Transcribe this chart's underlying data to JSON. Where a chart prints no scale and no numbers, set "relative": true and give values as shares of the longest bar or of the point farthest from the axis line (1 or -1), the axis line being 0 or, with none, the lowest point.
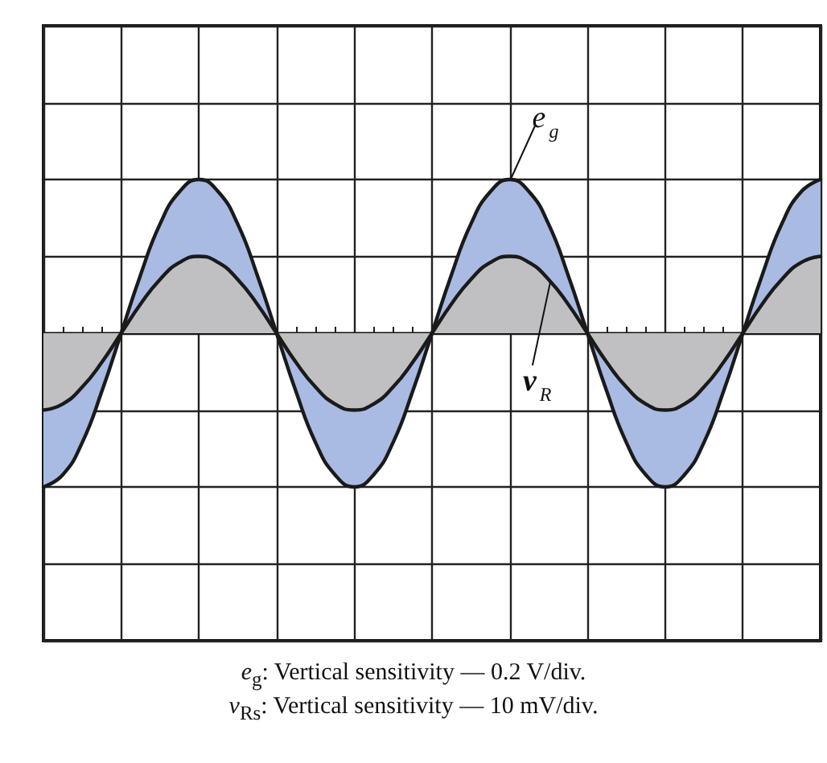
{
  "chart_data": {
    "type": "area",
    "relative": true,
    "grid": true,
    "legend": false,
    "marker": "none",
    "line_style": "solid",
    "categories": [
      null,
      null,
      null,
      null,
      null,
      null,
      null,
      null,
      null,
      null,
      null,
      null,
      null,
      null,
      null,
      null,
      null,
      null,
      null,
      null,
      null,
      null,
      null,
      null,
      null,
      null,
      null,
      null,
      null,
      null,
      null,
      null,
      null,
      null,
      null,
      null,
      null,
      null,
      null,
      null,
      null
    ],
    "series": [
      {
        "name": "e$_{g}$",
        "color": "#a9bbe3",
        "values": [
          -1,
          -0.92,
          -0.71,
          -0.38,
          0,
          0.38,
          0.71,
          0.92,
          1,
          0.92,
          0.71,
          0.38,
          0,
          -0.38,
          -0.71,
          -0.92,
          -1,
          -0.92,
          -0.71,
          -0.38,
          0,
          0.38,
          0.71,
          0.92,
          1,
          0.92,
          0.71,
          0.38,
          0,
          -0.38,
          -0.71,
          -0.92,
          -1,
          -0.92,
          -0.71,
          -0.38,
          0,
          0.38,
          0.71,
          0.92,
          1
        ]
      },
      {
        "name": "v$_{R}$",
        "color": "#c0c0c2",
        "values": [
          -0.5,
          -0.46,
          -0.35,
          -0.19,
          0,
          0.19,
          0.35,
          0.46,
          0.5,
          0.46,
          0.35,
          0.19,
          0,
          -0.19,
          -0.35,
          -0.46,
          -0.5,
          -0.46,
          -0.35,
          -0.19,
          0,
          0.19,
          0.35,
          0.46,
          0.5,
          0.46,
          0.35,
          0.19,
          0,
          -0.19,
          -0.35,
          -0.46,
          -0.5,
          -0.46,
          -0.35,
          -0.19,
          0,
          0.19,
          0.35,
          0.46,
          0.5
        ]
      }
    ],
    "annotations": [
      "e$_{g}$: Vertical sensitivity — 0.2 V/div.",
      "v$_{Rs}$: Vertical sensitivity — 10 mV/div."
    ]
  }
}
